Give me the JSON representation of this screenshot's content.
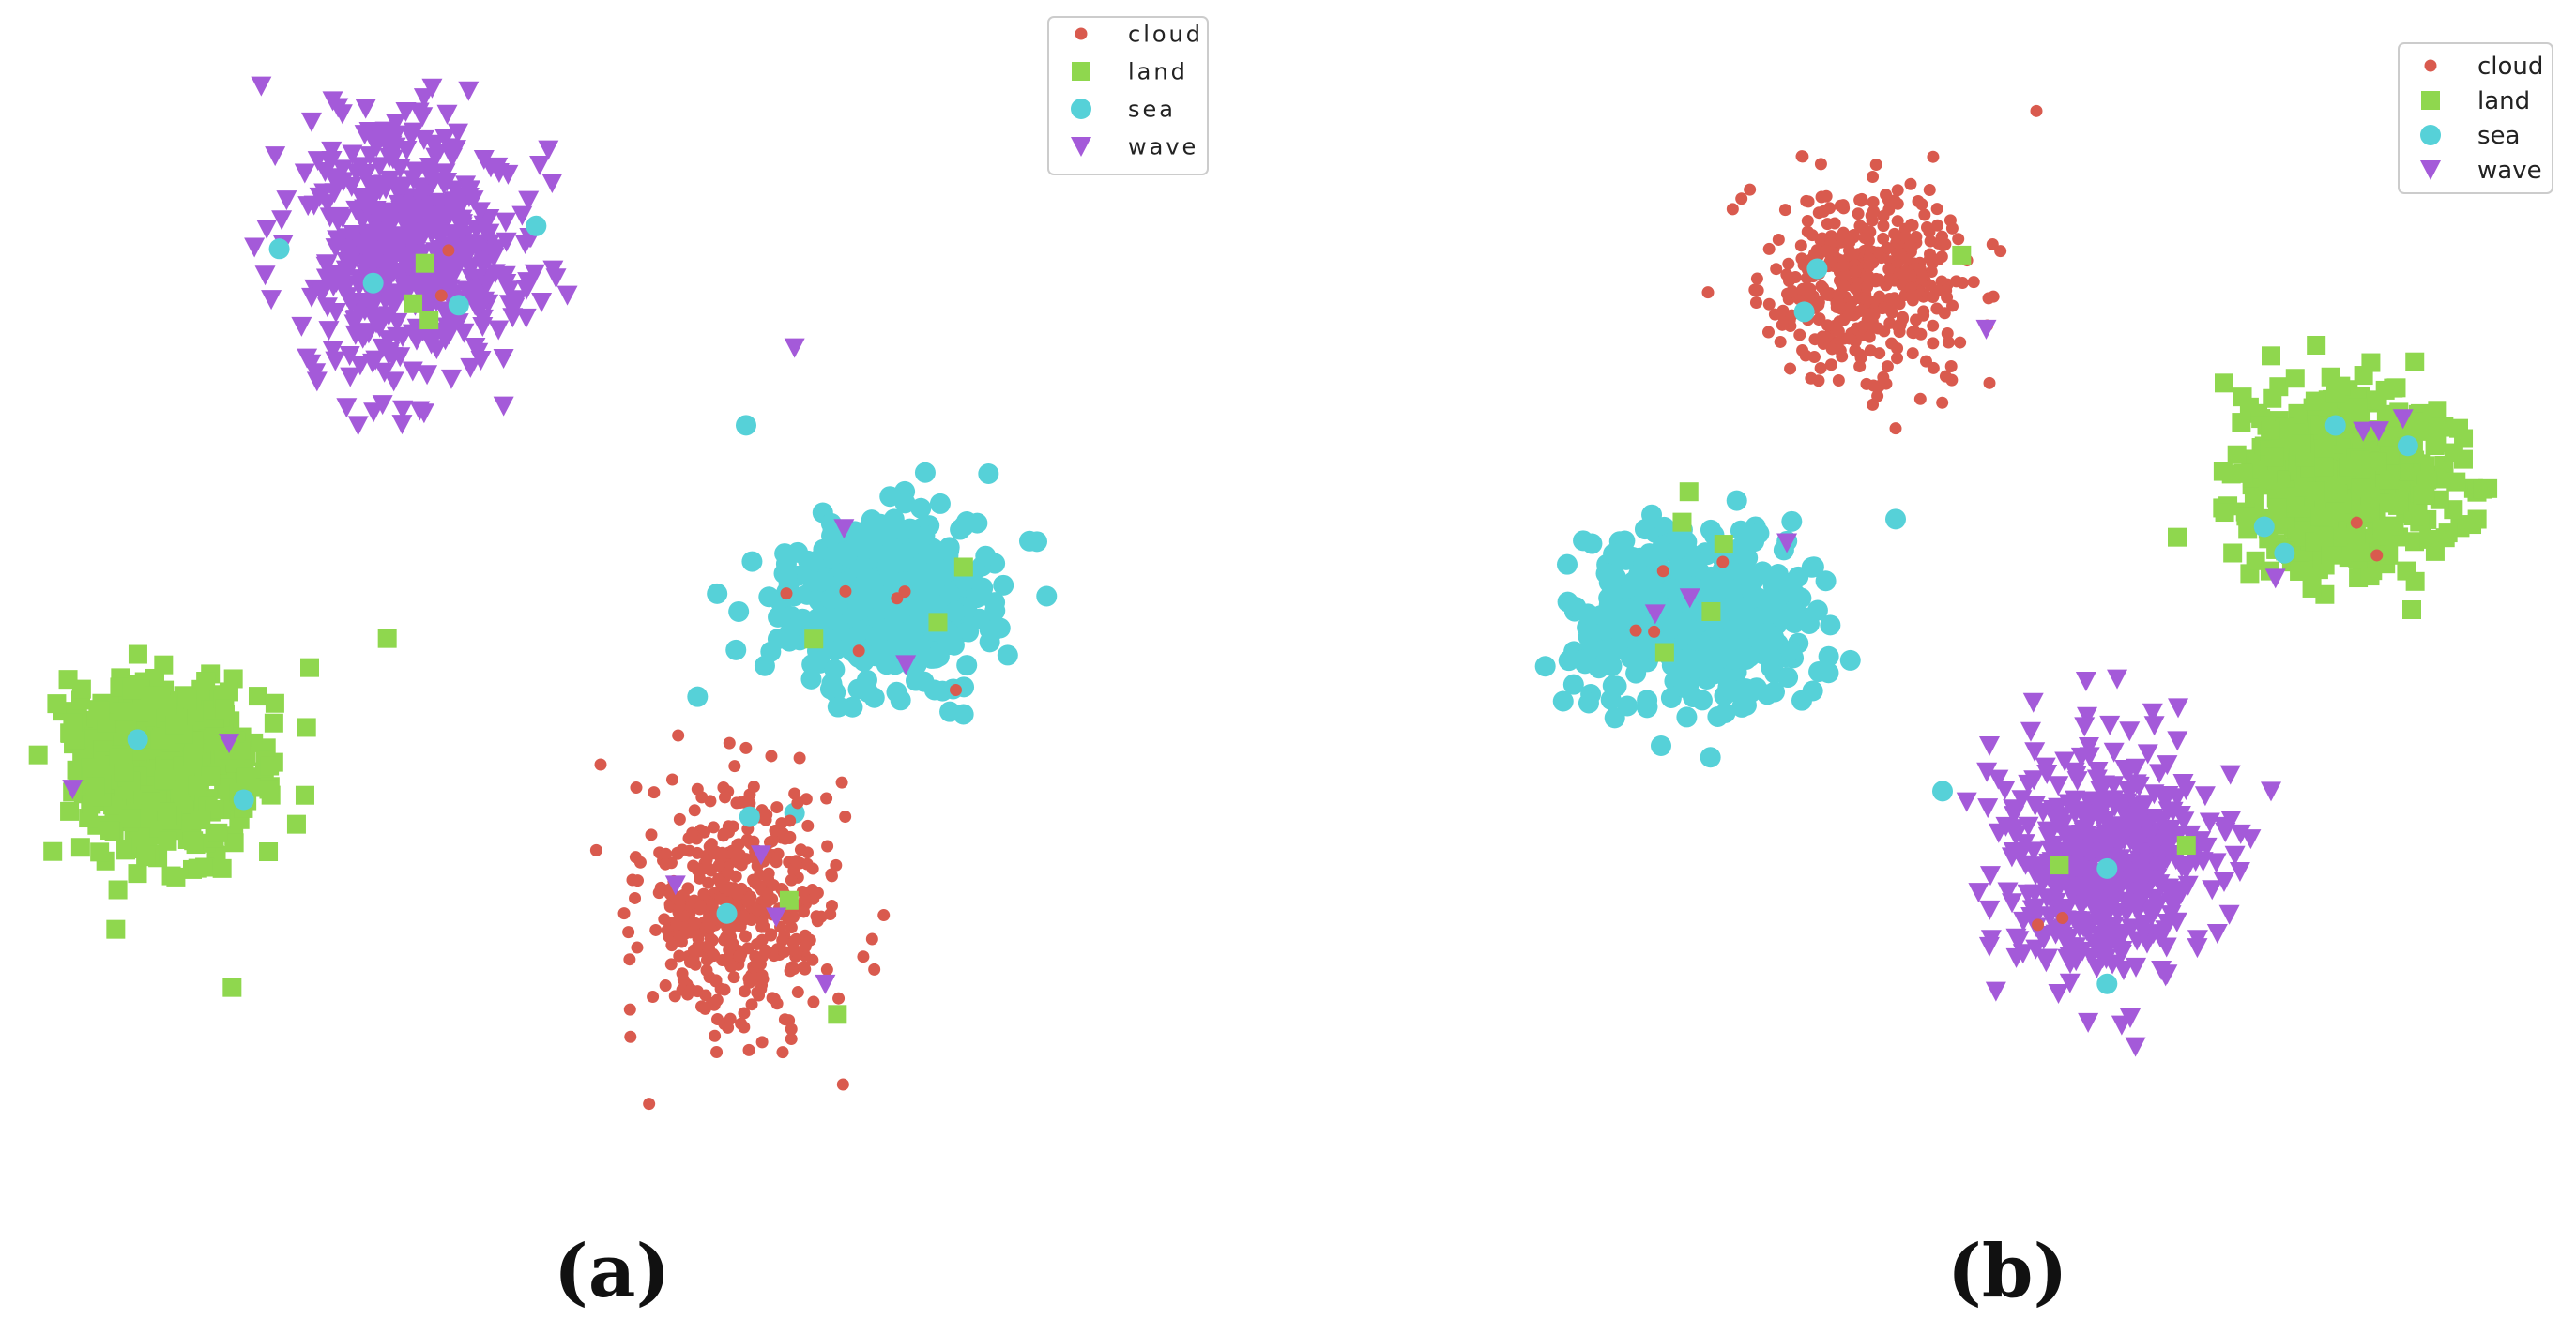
{
  "colors": {
    "cloud": "#d95a4e",
    "land": "#8fd74e",
    "sea": "#56d1d8",
    "wave": "#a45ad9"
  },
  "chart_data": [
    {
      "type": "scatter",
      "panel": "(a)",
      "title": "",
      "xlabel": "",
      "ylabel": "",
      "grid": false,
      "axes_visible": false,
      "xlim": [
        -60,
        60
      ],
      "ylim": [
        -60,
        60
      ],
      "legend_position": "top-right",
      "series": [
        {
          "name": "cloud",
          "marker": "circle-small",
          "center": [
            14,
            -30
          ],
          "spread": [
            9,
            11
          ],
          "n": 460,
          "points": [
            [
              0,
              -15
            ],
            [
              8,
              -12
            ],
            [
              20,
              -18
            ],
            [
              28,
              -33
            ],
            [
              5,
              -50
            ],
            [
              25,
              -48
            ]
          ]
        },
        {
          "name": "land",
          "marker": "square",
          "center": [
            -45,
            -15
          ],
          "spread": [
            9,
            8
          ],
          "n": 500,
          "points": [
            [
              -58,
              -14
            ],
            [
              -50,
              -32
            ],
            [
              -30,
              -5
            ],
            [
              -22,
              -2
            ],
            [
              -38,
              -38
            ]
          ]
        },
        {
          "name": "sea",
          "marker": "circle",
          "center": [
            29,
            2
          ],
          "spread": [
            10,
            8
          ],
          "n": 430,
          "points": [
            [
              45,
              8
            ],
            [
              40,
              15
            ],
            [
              15,
              20
            ],
            [
              10,
              -8
            ],
            [
              20,
              -20
            ]
          ]
        },
        {
          "name": "wave",
          "marker": "triangle-down",
          "center": [
            -20,
            38
          ],
          "spread": [
            10,
            12
          ],
          "n": 520,
          "points": [
            [
              -35,
              55
            ],
            [
              -5,
              45
            ],
            [
              -25,
              20
            ],
            [
              -10,
              22
            ],
            [
              20,
              28
            ]
          ]
        }
      ]
    },
    {
      "type": "scatter",
      "panel": "(b)",
      "title": "",
      "xlabel": "",
      "ylabel": "",
      "grid": false,
      "axes_visible": false,
      "xlim": [
        -60,
        60
      ],
      "ylim": [
        -60,
        60
      ],
      "legend_position": "top-right",
      "series": [
        {
          "name": "cloud",
          "marker": "circle-small",
          "center": [
            -13,
            36
          ],
          "spread": [
            10,
            9
          ],
          "n": 430,
          "points": [
            [
              -30,
              35
            ],
            [
              5,
              55
            ],
            [
              -20,
              50
            ],
            [
              0,
              25
            ],
            [
              -10,
              20
            ]
          ]
        },
        {
          "name": "land",
          "marker": "square",
          "center": [
            37,
            14
          ],
          "spread": [
            10,
            9
          ],
          "n": 470,
          "points": [
            [
              25,
              25
            ],
            [
              50,
              20
            ],
            [
              45,
              0
            ],
            [
              30,
              28
            ],
            [
              20,
              8
            ]
          ]
        },
        {
          "name": "sea",
          "marker": "circle",
          "center": [
            -31,
            -1
          ],
          "spread": [
            11,
            9
          ],
          "n": 480,
          "points": [
            [
              -45,
              5
            ],
            [
              -20,
              -10
            ],
            [
              -10,
              10
            ],
            [
              -35,
              -15
            ],
            [
              -5,
              -20
            ]
          ]
        },
        {
          "name": "wave",
          "marker": "triangle-down",
          "center": [
            13,
            -28
          ],
          "spread": [
            10,
            12
          ],
          "n": 500,
          "points": [
            [
              0,
              -15
            ],
            [
              25,
              -30
            ],
            [
              15,
              -45
            ],
            [
              5,
              -35
            ],
            [
              30,
              -20
            ]
          ]
        }
      ]
    }
  ],
  "legend": {
    "panel_a": [
      "cloud",
      "land",
      "sea",
      "wave"
    ],
    "panel_b": [
      "cloud",
      "land",
      "sea",
      "wave"
    ]
  },
  "captions": {
    "panel_a": "(a)",
    "panel_b": "(b)"
  }
}
